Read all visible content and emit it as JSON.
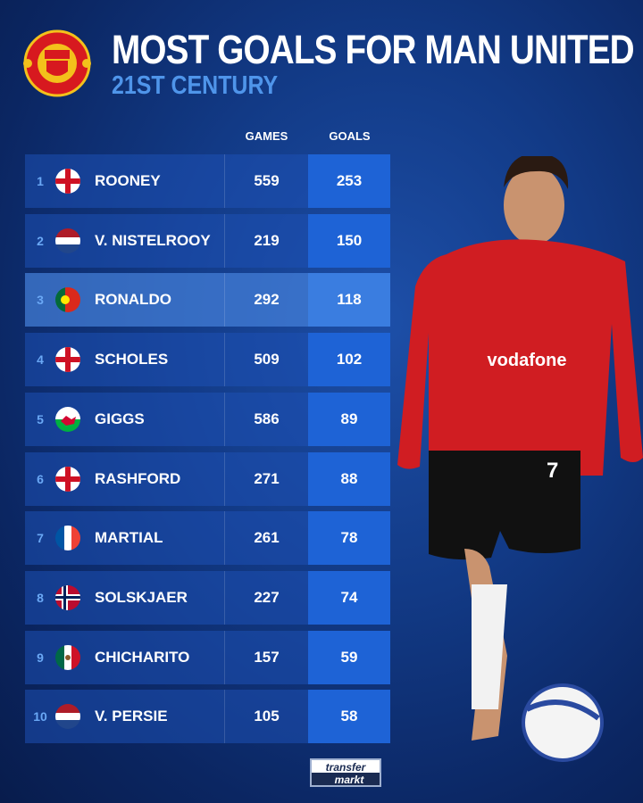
{
  "header": {
    "title": "MOST GOALS FOR MAN UNITED",
    "subtitle": "21ST CENTURY",
    "logo_text": "MANCHESTER UNITED"
  },
  "columns": {
    "games": "GAMES",
    "goals": "GOALS"
  },
  "rows": [
    {
      "rank": "1",
      "flag": "england",
      "name": "ROONEY",
      "games": "559",
      "goals": "253"
    },
    {
      "rank": "2",
      "flag": "netherlands",
      "name": "V. NISTELROOY",
      "games": "219",
      "goals": "150"
    },
    {
      "rank": "3",
      "flag": "portugal",
      "name": "RONALDO",
      "games": "292",
      "goals": "118",
      "highlighted": true
    },
    {
      "rank": "4",
      "flag": "england",
      "name": "SCHOLES",
      "games": "509",
      "goals": "102"
    },
    {
      "rank": "5",
      "flag": "wales",
      "name": "GIGGS",
      "games": "586",
      "goals": "89"
    },
    {
      "rank": "6",
      "flag": "england",
      "name": "RASHFORD",
      "games": "271",
      "goals": "88"
    },
    {
      "rank": "7",
      "flag": "france",
      "name": "MARTIAL",
      "games": "261",
      "goals": "78"
    },
    {
      "rank": "8",
      "flag": "norway",
      "name": "SOLSKJAER",
      "games": "227",
      "goals": "74"
    },
    {
      "rank": "9",
      "flag": "mexico",
      "name": "CHICHARITO",
      "games": "157",
      "goals": "59"
    },
    {
      "rank": "10",
      "flag": "netherlands",
      "name": "V. PERSIE",
      "games": "105",
      "goals": "58"
    }
  ],
  "player_image": {
    "shirt_text": "vodafone",
    "number": "7"
  },
  "footer": {
    "brand": "transfermarkt"
  }
}
